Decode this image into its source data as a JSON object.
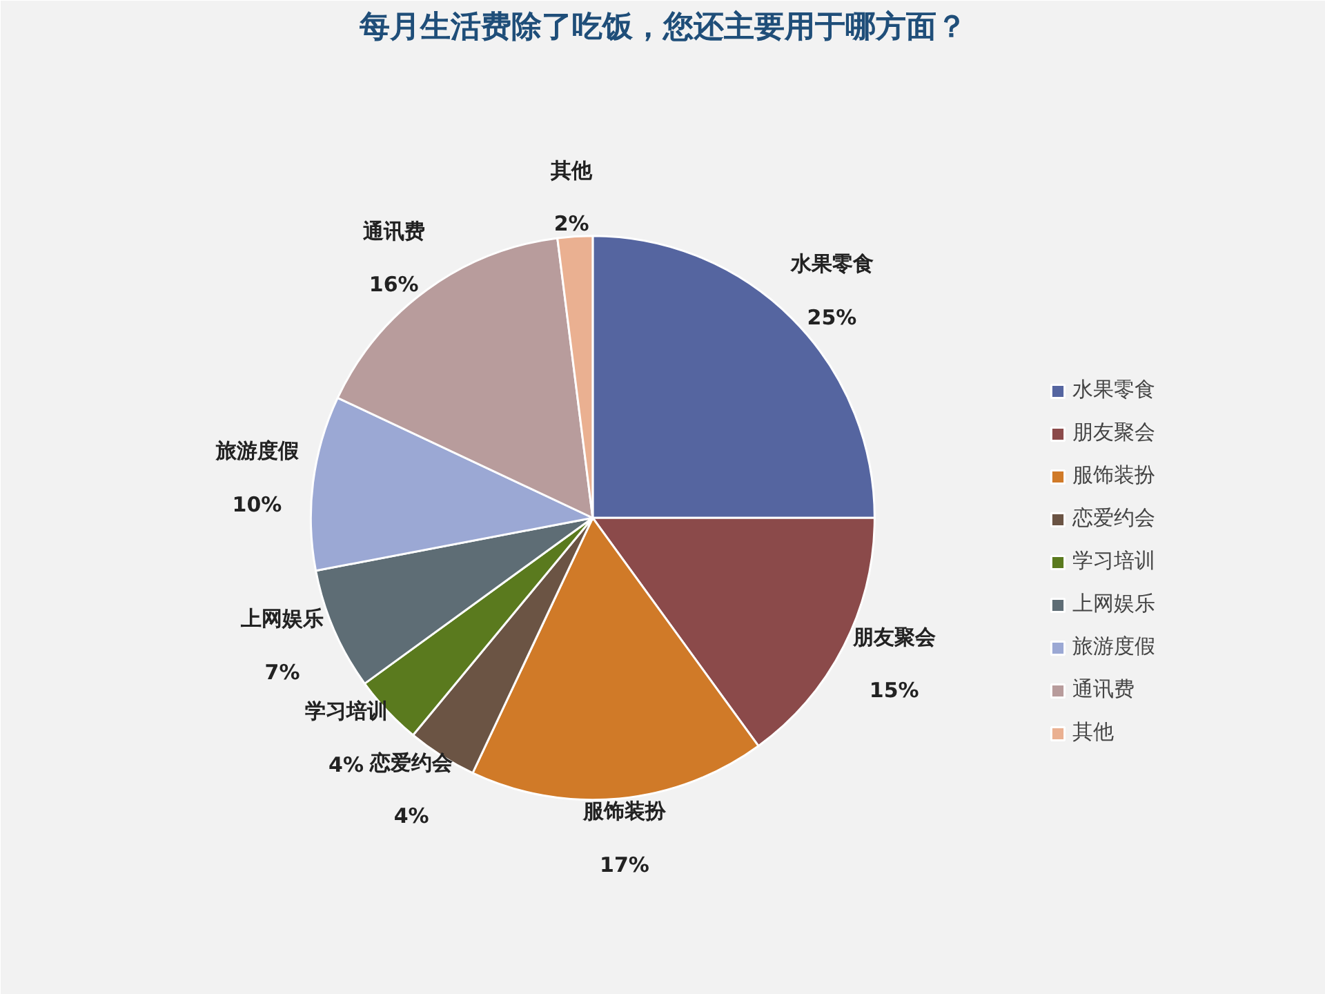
{
  "chart_data": {
    "type": "pie",
    "title": "每月生活费除了吃饭，您还主要用于哪方面？",
    "categories": [
      "水果零食",
      "朋友聚会",
      "服饰装扮",
      "恋爱约会",
      "学习培训",
      "上网娱乐",
      "旅游度假",
      "通讯费",
      "其他"
    ],
    "values": [
      25,
      15,
      17,
      4,
      4,
      7,
      10,
      16,
      2
    ],
    "value_labels": [
      "25%",
      "15%",
      "17%",
      "4%",
      "4%",
      "7%",
      "10%",
      "16%",
      "2%"
    ],
    "colors": [
      "#5565a0",
      "#8b4a4a",
      "#d07a28",
      "#6b5444",
      "#5a7a1e",
      "#5e6d75",
      "#9ba8d4",
      "#b89c9c",
      "#eab091"
    ],
    "legend": "right"
  }
}
